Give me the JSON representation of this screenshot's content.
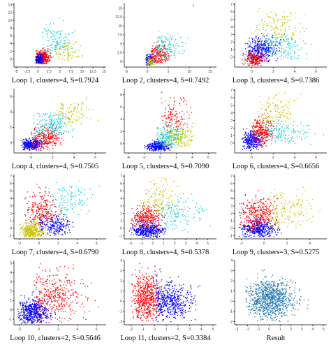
{
  "colors": {
    "red": "#ff0000",
    "blue": "#0000ff",
    "cyan": "#19cfd6",
    "olive": "#c8c400",
    "steel": "#1f77b4"
  },
  "chart_data": [
    {
      "type": "scatter",
      "caption": "Loop 1, clusters=4, S=0.7924",
      "xlim": [
        -5.5,
        15.5
      ],
      "ylim": [
        -2,
        14.5
      ],
      "xticks": [
        -5.0,
        -2.5,
        0.0,
        2.5,
        5.0,
        7.5,
        10.0,
        12.5,
        15.0
      ],
      "yticks": [
        0,
        2,
        4,
        6,
        8,
        10,
        12,
        14
      ],
      "series": [
        {
          "color": "red",
          "n": 380,
          "cx": 0.9,
          "cy": 0.4,
          "sx": 0.8,
          "sy": 0.9,
          "xmin": -0.5,
          "xmax": 3.0,
          "ymin": -1.2,
          "ymax": 3.0
        },
        {
          "color": "blue",
          "n": 140,
          "cx": 0.2,
          "cy": 0.0,
          "sx": 0.4,
          "sy": 0.6,
          "xmin": -0.8,
          "xmax": 1.2,
          "ymin": -1.2,
          "ymax": 1.8
        },
        {
          "color": "cyan",
          "n": 140,
          "cx": 4.0,
          "cy": 4.0,
          "sx": 1.8,
          "sy": 2.4,
          "xmin": 1.0,
          "xmax": 9.0,
          "ymin": 0.5,
          "ymax": 13.8
        },
        {
          "color": "olive",
          "n": 80,
          "cx": 6.5,
          "cy": 2.0,
          "sx": 1.5,
          "sy": 1.5,
          "xmin": 3.5,
          "xmax": 10.5,
          "ymin": -0.5,
          "ymax": 6.0
        }
      ]
    },
    {
      "type": "scatter",
      "caption": "Loop 2, clusters=4, S=0.7492",
      "xlim": [
        -5.5,
        16.5
      ],
      "ylim": [
        -1.5,
        16.5
      ],
      "xticks": [
        -5,
        0,
        5,
        10,
        15
      ],
      "yticks": [
        0.0,
        2.5,
        5.0,
        7.5,
        10.0,
        12.5,
        15.0
      ],
      "series": [
        {
          "color": "blue",
          "n": 200,
          "cx": 0.6,
          "cy": 0.3,
          "sx": 0.5,
          "sy": 0.8,
          "xmin": -0.5,
          "xmax": 2.0,
          "ymin": -1.0,
          "ymax": 2.5
        },
        {
          "color": "olive",
          "n": 80,
          "cx": 0.7,
          "cy": 0.1,
          "sx": 0.4,
          "sy": 0.6,
          "xmin": 0.0,
          "xmax": 2.0,
          "ymin": -1.0,
          "ymax": 1.8
        },
        {
          "color": "red",
          "n": 220,
          "cx": 2.8,
          "cy": 1.8,
          "sx": 1.3,
          "sy": 1.6,
          "xmin": 0.8,
          "xmax": 9.0,
          "ymin": -0.5,
          "ymax": 7.0
        },
        {
          "color": "cyan",
          "n": 140,
          "cx": 4.2,
          "cy": 3.8,
          "sx": 2.0,
          "sy": 2.0,
          "xmin": 2.0,
          "xmax": 10.5,
          "ymin": 1.0,
          "ymax": 9.0
        }
      ],
      "annotations": [
        {
          "color": "red",
          "x": 11.0,
          "y": 15.8
        }
      ]
    },
    {
      "type": "scatter",
      "caption": "Loop 3, clusters=4, S=0.7386",
      "xlim": [
        -1.6,
        7.0
      ],
      "ylim": [
        -1.3,
        7.2
      ],
      "xticks": [
        0,
        2,
        4,
        6
      ],
      "yticks": [
        0,
        1,
        2,
        3,
        4,
        5,
        6,
        7
      ],
      "series": [
        {
          "color": "red",
          "n": 260,
          "cx": 0.3,
          "cy": -0.2,
          "sx": 0.5,
          "sy": 0.5,
          "xmin": -0.9,
          "xmax": 1.8,
          "ymin": -1.1,
          "ymax": 1.2
        },
        {
          "color": "blue",
          "n": 300,
          "cx": 0.9,
          "cy": 1.2,
          "sx": 0.7,
          "sy": 0.8,
          "xmin": -0.6,
          "xmax": 3.0,
          "ymin": -0.6,
          "ymax": 3.5
        },
        {
          "color": "cyan",
          "n": 160,
          "cx": 2.8,
          "cy": 1.4,
          "sx": 1.2,
          "sy": 1.0,
          "xmin": 1.0,
          "xmax": 6.5,
          "ymin": -0.3,
          "ymax": 4.0
        },
        {
          "color": "olive",
          "n": 130,
          "cx": 2.3,
          "cy": 4.2,
          "sx": 1.3,
          "sy": 1.3,
          "xmin": 0.0,
          "xmax": 5.5,
          "ymin": 2.0,
          "ymax": 7.0
        }
      ]
    },
    {
      "type": "scatter",
      "caption": "Loop 4, clusters=4, S=0.7505",
      "xlim": [
        -1.6,
        7.0
      ],
      "ylim": [
        -1.3,
        7.0
      ],
      "xticks": [
        0,
        2,
        4,
        6
      ],
      "yticks": [
        0,
        2,
        4,
        6
      ],
      "series": [
        {
          "color": "blue",
          "n": 320,
          "cx": 0.0,
          "cy": -0.2,
          "sx": 0.5,
          "sy": 0.4,
          "xmin": -0.9,
          "xmax": 1.5,
          "ymin": -1.0,
          "ymax": 0.8
        },
        {
          "color": "red",
          "n": 260,
          "cx": 1.4,
          "cy": 0.6,
          "sx": 0.8,
          "sy": 0.8,
          "xmin": 0.0,
          "xmax": 4.0,
          "ymin": -1.0,
          "ymax": 2.4
        },
        {
          "color": "cyan",
          "n": 200,
          "cx": 1.9,
          "cy": 2.2,
          "sx": 1.0,
          "sy": 0.9,
          "xmin": 0.2,
          "xmax": 5.5,
          "ymin": 0.8,
          "ymax": 4.5
        },
        {
          "color": "olive",
          "n": 110,
          "cx": 3.6,
          "cy": 3.8,
          "sx": 1.1,
          "sy": 1.0,
          "xmin": 2.0,
          "xmax": 6.5,
          "ymin": 2.2,
          "ymax": 6.8
        }
      ]
    },
    {
      "type": "scatter",
      "caption": "Loop 5, clusters=4, S=0.7090",
      "xlim": [
        -4.5,
        7.0
      ],
      "ylim": [
        -1.5,
        9.0
      ],
      "xticks": [
        -4,
        -2,
        0,
        2,
        4,
        6
      ],
      "yticks": [
        0,
        2,
        4,
        6,
        8
      ],
      "series": [
        {
          "color": "blue",
          "n": 320,
          "cx": -0.3,
          "cy": -0.4,
          "sx": 0.7,
          "sy": 0.4,
          "xmin": -2.0,
          "xmax": 1.5,
          "ymin": -1.2,
          "ymax": 0.8
        },
        {
          "color": "cyan",
          "n": 220,
          "cx": 1.0,
          "cy": 1.0,
          "sx": 0.9,
          "sy": 1.0,
          "xmin": -0.5,
          "xmax": 3.5,
          "ymin": -0.8,
          "ymax": 3.5
        },
        {
          "color": "olive",
          "n": 160,
          "cx": 2.2,
          "cy": 1.0,
          "sx": 1.0,
          "sy": 1.0,
          "xmin": 0.5,
          "xmax": 4.5,
          "ymin": -0.8,
          "ymax": 3.5
        },
        {
          "color": "red",
          "n": 130,
          "cx": 1.6,
          "cy": 4.5,
          "sx": 1.0,
          "sy": 1.6,
          "xmin": 0.0,
          "xmax": 4.0,
          "ymin": 2.0,
          "ymax": 8.5
        }
      ]
    },
    {
      "type": "scatter",
      "caption": "Loop 6, clusters=4, S=0.6656",
      "xlim": [
        -1.6,
        7.0
      ],
      "ylim": [
        -1.3,
        7.2
      ],
      "xticks": [
        0,
        2,
        4,
        6
      ],
      "yticks": [
        0,
        1,
        2,
        3,
        4,
        5,
        6,
        7
      ],
      "series": [
        {
          "color": "blue",
          "n": 300,
          "cx": 0.0,
          "cy": 0.3,
          "sx": 0.5,
          "sy": 0.6,
          "xmin": -0.9,
          "xmax": 1.2,
          "ymin": -1.0,
          "ymax": 2.0
        },
        {
          "color": "red",
          "n": 300,
          "cx": 0.8,
          "cy": 1.4,
          "sx": 0.6,
          "sy": 0.9,
          "xmin": 0.0,
          "xmax": 2.5,
          "ymin": -0.5,
          "ymax": 4.0
        },
        {
          "color": "cyan",
          "n": 170,
          "cx": 2.8,
          "cy": 1.4,
          "sx": 1.3,
          "sy": 0.9,
          "xmin": 1.2,
          "xmax": 6.8,
          "ymin": -0.5,
          "ymax": 3.5
        },
        {
          "color": "olive",
          "n": 140,
          "cx": 2.2,
          "cy": 4.3,
          "sx": 1.0,
          "sy": 1.2,
          "xmin": 0.5,
          "xmax": 5.0,
          "ymin": 2.5,
          "ymax": 7.0
        }
      ]
    },
    {
      "type": "scatter",
      "caption": "Loop 7, clusters=4, S=0.6790",
      "xlim": [
        -2.6,
        7.0
      ],
      "ylim": [
        -1.4,
        7.2
      ],
      "xticks": [
        -2,
        0,
        2,
        4,
        6
      ],
      "yticks": [
        -1,
        0,
        1,
        2,
        3,
        4,
        5,
        6,
        7
      ],
      "series": [
        {
          "color": "olive",
          "n": 360,
          "cx": -0.8,
          "cy": -0.4,
          "sx": 0.6,
          "sy": 0.6,
          "xmin": -2.0,
          "xmax": 0.8,
          "ymin": -1.2,
          "ymax": 1.3
        },
        {
          "color": "red",
          "n": 230,
          "cx": 0.3,
          "cy": 2.4,
          "sx": 0.9,
          "sy": 1.3,
          "xmin": -1.5,
          "xmax": 2.5,
          "ymin": 0.5,
          "ymax": 6.0
        },
        {
          "color": "blue",
          "n": 220,
          "cx": 1.6,
          "cy": 0.4,
          "sx": 0.9,
          "sy": 0.7,
          "xmin": 0.0,
          "xmax": 4.5,
          "ymin": -1.2,
          "ymax": 2.0
        },
        {
          "color": "cyan",
          "n": 130,
          "cx": 3.0,
          "cy": 3.6,
          "sx": 1.3,
          "sy": 1.4,
          "xmin": 1.0,
          "xmax": 6.5,
          "ymin": 1.5,
          "ymax": 6.9
        }
      ]
    },
    {
      "type": "scatter",
      "caption": "Loop 8, clusters=4, S=0.5378",
      "xlim": [
        -2.6,
        5.8
      ],
      "ylim": [
        -1.4,
        7.2
      ],
      "xticks": [
        -2,
        -1,
        0,
        1,
        2,
        3,
        4,
        5
      ],
      "yticks": [
        -1,
        0,
        1,
        2,
        3,
        4,
        5,
        6,
        7
      ],
      "series": [
        {
          "color": "blue",
          "n": 380,
          "cx": -0.5,
          "cy": -0.3,
          "sx": 0.8,
          "sy": 0.5,
          "xmin": -2.2,
          "xmax": 1.2,
          "ymin": -1.2,
          "ymax": 1.2
        },
        {
          "color": "red",
          "n": 280,
          "cx": -0.6,
          "cy": 1.4,
          "sx": 0.7,
          "sy": 0.8,
          "xmin": -2.0,
          "xmax": 1.2,
          "ymin": 0.0,
          "ymax": 3.5
        },
        {
          "color": "olive",
          "n": 150,
          "cx": 0.5,
          "cy": 4.0,
          "sx": 0.9,
          "sy": 1.3,
          "xmin": -1.2,
          "xmax": 2.5,
          "ymin": 2.0,
          "ymax": 7.0
        },
        {
          "color": "cyan",
          "n": 150,
          "cx": 2.0,
          "cy": 2.0,
          "sx": 1.2,
          "sy": 1.1,
          "xmin": 0.5,
          "xmax": 5.3,
          "ymin": -0.5,
          "ymax": 5.0
        }
      ]
    },
    {
      "type": "scatter",
      "caption": "Loop 9, clusters=3, S=0.5275",
      "xlim": [
        -2.6,
        5.5
      ],
      "ylim": [
        -1.4,
        7.2
      ],
      "xticks": [
        -2,
        0,
        2,
        4
      ],
      "yticks": [
        -1,
        0,
        1,
        2,
        3,
        4,
        5,
        6,
        7
      ],
      "series": [
        {
          "color": "blue",
          "n": 380,
          "cx": -0.5,
          "cy": -0.1,
          "sx": 0.8,
          "sy": 0.6,
          "xmin": -2.2,
          "xmax": 1.5,
          "ymin": -1.2,
          "ymax": 1.8
        },
        {
          "color": "red",
          "n": 330,
          "cx": -0.5,
          "cy": 1.8,
          "sx": 0.8,
          "sy": 1.2,
          "xmin": -2.2,
          "xmax": 1.2,
          "ymin": -0.3,
          "ymax": 6.0
        },
        {
          "color": "olive",
          "n": 160,
          "cx": 1.8,
          "cy": 2.2,
          "sx": 1.1,
          "sy": 1.4,
          "xmin": 0.5,
          "xmax": 5.0,
          "ymin": 0.0,
          "ymax": 6.8
        }
      ]
    },
    {
      "type": "scatter",
      "caption": "Loop 10, clusters=2, S=0.5646",
      "xlim": [
        -2.6,
        7.0
      ],
      "ylim": [
        -1.6,
        5.3
      ],
      "xticks": [
        -2,
        0,
        2,
        4,
        6
      ],
      "yticks": [
        -1,
        0,
        1,
        2,
        3,
        4,
        5
      ],
      "series": [
        {
          "color": "blue",
          "n": 520,
          "cx": -0.6,
          "cy": -0.2,
          "sx": 0.8,
          "sy": 0.7,
          "xmin": -2.2,
          "xmax": 1.8,
          "ymin": -1.5,
          "ymax": 2.5
        },
        {
          "color": "red",
          "n": 380,
          "cx": 1.6,
          "cy": 1.4,
          "sx": 1.5,
          "sy": 1.4,
          "xmin": -0.5,
          "xmax": 6.5,
          "ymin": -1.5,
          "ymax": 5.0
        }
      ]
    },
    {
      "type": "scatter",
      "caption": "Loop 11, clusters=2, S=0.3384",
      "xlim": [
        -2.6,
        5.3
      ],
      "ylim": [
        -2.3,
        4.0
      ],
      "xticks": [
        -2,
        -1,
        0,
        1,
        2,
        3,
        4,
        5
      ],
      "yticks": [
        -2,
        -1,
        0,
        1,
        2,
        3,
        4
      ],
      "series": [
        {
          "color": "red",
          "n": 560,
          "cx": -0.7,
          "cy": 0.4,
          "sx": 0.6,
          "sy": 1.2,
          "xmin": -2.0,
          "xmax": 0.6,
          "ymin": -2.0,
          "ymax": 3.8
        },
        {
          "color": "blue",
          "n": 480,
          "cx": 1.2,
          "cy": 0.0,
          "sx": 1.0,
          "sy": 0.9,
          "xmin": 0.1,
          "xmax": 4.8,
          "ymin": -2.0,
          "ymax": 3.0
        }
      ]
    },
    {
      "type": "scatter",
      "caption": "Result",
      "xlim": [
        -3.2,
        5.3
      ],
      "ylim": [
        -2.3,
        4.0
      ],
      "xticks": [
        -3,
        -2,
        -1,
        0,
        1,
        2,
        3,
        4,
        5
      ],
      "yticks": [
        -2,
        -1,
        0,
        1,
        2,
        3,
        4
      ],
      "series": [
        {
          "color": "steel",
          "n": 900,
          "cx": 0.0,
          "cy": 0.2,
          "sx": 1.1,
          "sy": 1.0,
          "xmin": -2.2,
          "xmax": 4.8,
          "ymin": -2.0,
          "ymax": 3.8
        }
      ]
    }
  ]
}
